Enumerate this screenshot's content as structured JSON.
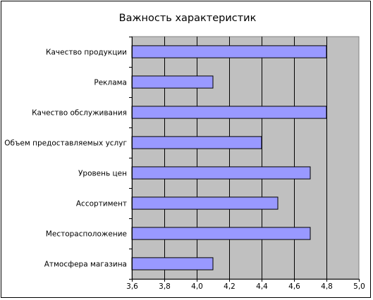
{
  "chart_data": {
    "type": "bar",
    "orientation": "horizontal",
    "title": "Важность характеристик",
    "categories": [
      "Качество продукции",
      "Реклама",
      "Качество обслуживания",
      "Объем предоставляемых услуг",
      "Уровень цен",
      "Ассортимент",
      "Месторасположение",
      "Атмосфера магазина"
    ],
    "values": [
      4.8,
      4.1,
      4.8,
      4.4,
      4.7,
      4.5,
      4.7,
      4.1
    ],
    "xlim": [
      3.6,
      5.0
    ],
    "xticks": [
      "3,6",
      "3,8",
      "4,0",
      "4,2",
      "4,4",
      "4,6",
      "4,8",
      "5,0"
    ],
    "grid": true,
    "legend": "none",
    "colors": {
      "bar_fill": "#9999ff",
      "bar_stroke": "#000000",
      "plot_background": "#c0c0c0",
      "gridline": "#000000"
    }
  }
}
